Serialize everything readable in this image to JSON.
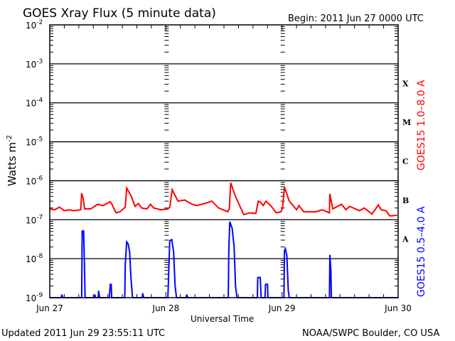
{
  "chart_data": {
    "type": "line",
    "title": "GOES Xray Flux (5 minute data)",
    "begin_label": "Begin:  2011 Jun 27 0000 UTC",
    "xlabel": "Universal Time",
    "ylabel": "Watts m",
    "ylabel_sup": "-2",
    "yscale": "log",
    "ylim": [
      1e-09,
      0.01
    ],
    "xlim_hours": [
      0,
      72
    ],
    "x_tick_labels": [
      {
        "hour": 0,
        "label": "Jun 27"
      },
      {
        "hour": 24,
        "label": "Jun 28"
      },
      {
        "hour": 48,
        "label": "Jun 29"
      },
      {
        "hour": 72,
        "label": "Jun 30"
      }
    ],
    "y_tick_labels": [
      {
        "exp": -2,
        "base": "10",
        "sup": "-2"
      },
      {
        "exp": -3,
        "base": "10",
        "sup": "-3"
      },
      {
        "exp": -4,
        "base": "10",
        "sup": "-4"
      },
      {
        "exp": -5,
        "base": "10",
        "sup": "-5"
      },
      {
        "exp": -6,
        "base": "10",
        "sup": "-6"
      },
      {
        "exp": -7,
        "base": "10",
        "sup": "-7"
      },
      {
        "exp": -8,
        "base": "10",
        "sup": "-8"
      },
      {
        "exp": -9,
        "base": "10",
        "sup": "-9"
      }
    ],
    "flare_classes": [
      {
        "label": "X",
        "exp": -4
      },
      {
        "label": "M",
        "exp": -5
      },
      {
        "label": "C",
        "exp": -6
      },
      {
        "label": "B",
        "exp": -7
      },
      {
        "label": "A",
        "exp": -8
      }
    ],
    "series": [
      {
        "name": "GOES15 1.0–8.0 A",
        "color": "#ff0000",
        "points_hour_flux": [
          [
            0,
            1.9e-07
          ],
          [
            1,
            1.8e-07
          ],
          [
            2,
            2.1e-07
          ],
          [
            3,
            1.7e-07
          ],
          [
            4,
            1.8e-07
          ],
          [
            5,
            1.7e-07
          ],
          [
            6.4,
            1.8e-07
          ],
          [
            6.6,
            4.8e-07
          ],
          [
            6.9,
            3.5e-07
          ],
          [
            7.2,
            1.9e-07
          ],
          [
            8.5,
            1.9e-07
          ],
          [
            9.9,
            2.5e-07
          ],
          [
            11,
            2.3e-07
          ],
          [
            12.5,
            2.9e-07
          ],
          [
            12.9,
            2.4e-07
          ],
          [
            13.7,
            1.5e-07
          ],
          [
            14.5,
            1.6e-07
          ],
          [
            15.4,
            2e-07
          ],
          [
            15.6,
            2.1e-07
          ],
          [
            15.9,
            6.5e-07
          ],
          [
            16.9,
            3.9e-07
          ],
          [
            17.6,
            2.2e-07
          ],
          [
            18.3,
            2.6e-07
          ],
          [
            19,
            2e-07
          ],
          [
            20.1,
            1.9e-07
          ],
          [
            20.8,
            2.5e-07
          ],
          [
            21.5,
            2e-07
          ],
          [
            23,
            1.8e-07
          ],
          [
            24.4,
            1.9e-07
          ],
          [
            24.8,
            2.1e-07
          ],
          [
            25.3,
            5.9e-07
          ],
          [
            26.5,
            3e-07
          ],
          [
            27.9,
            3.2e-07
          ],
          [
            29.4,
            2.5e-07
          ],
          [
            30.4,
            2.3e-07
          ],
          [
            32,
            2.6e-07
          ],
          [
            33.5,
            3e-07
          ],
          [
            34.9,
            2e-07
          ],
          [
            36.8,
            1.6e-07
          ],
          [
            37.1,
            1.9e-07
          ],
          [
            37.4,
            8.9e-07
          ],
          [
            38.2,
            4.5e-07
          ],
          [
            39.3,
            2.2e-07
          ],
          [
            40.1,
            1.35e-07
          ],
          [
            41.3,
            1.5e-07
          ],
          [
            42.6,
            1.45e-07
          ],
          [
            43.1,
            3e-07
          ],
          [
            43.6,
            2.8e-07
          ],
          [
            44.1,
            2.3e-07
          ],
          [
            44.7,
            3e-07
          ],
          [
            45.8,
            2.2e-07
          ],
          [
            46.8,
            1.5e-07
          ],
          [
            47.8,
            1.6e-07
          ],
          [
            48.1,
            2e-07
          ],
          [
            48.5,
            6.9e-07
          ],
          [
            49.5,
            3e-07
          ],
          [
            51,
            1.8e-07
          ],
          [
            51.5,
            2.3e-07
          ],
          [
            52.5,
            1.6e-07
          ],
          [
            55,
            1.6e-07
          ],
          [
            56.3,
            1.8e-07
          ],
          [
            57.8,
            1.5e-07
          ],
          [
            57.9,
            4.6e-07
          ],
          [
            58.5,
            1.9e-07
          ],
          [
            60.3,
            2.5e-07
          ],
          [
            61.2,
            1.8e-07
          ],
          [
            62,
            2.2e-07
          ],
          [
            64,
            1.7e-07
          ],
          [
            65,
            2e-07
          ],
          [
            66.6,
            1.4e-07
          ],
          [
            67.9,
            2.4e-07
          ],
          [
            68.5,
            1.8e-07
          ],
          [
            69.5,
            1.7e-07
          ],
          [
            70.3,
            1.25e-07
          ],
          [
            71.8,
            1.3e-07
          ]
        ]
      },
      {
        "name": "GOES15 0.5–4.0 A",
        "color": "#0000ff",
        "points_hour_flux": [
          [
            0,
            1e-09
          ],
          [
            2.4,
            1e-09
          ],
          [
            2.5,
            1.2e-09
          ],
          [
            2.7,
            1e-09
          ],
          [
            6.6,
            1e-09
          ],
          [
            6.7,
            5.1e-08
          ],
          [
            7.0,
            5.1e-08
          ],
          [
            7.1,
            1.7e-08
          ],
          [
            7.3,
            1e-09
          ],
          [
            9.2,
            1e-09
          ],
          [
            9.3,
            1.2e-09
          ],
          [
            9.5,
            1e-09
          ],
          [
            10,
            1e-09
          ],
          [
            10.1,
            1.5e-09
          ],
          [
            10.3,
            1e-09
          ],
          [
            12.3,
            1e-09
          ],
          [
            12.5,
            2.2e-09
          ],
          [
            12.7,
            2.2e-09
          ],
          [
            12.8,
            1e-09
          ],
          [
            15.5,
            1e-09
          ],
          [
            15.6,
            7e-09
          ],
          [
            15.9,
            2.7e-08
          ],
          [
            16.2,
            2.4e-08
          ],
          [
            16.5,
            1.5e-08
          ],
          [
            16.8,
            3e-09
          ],
          [
            17.1,
            1e-09
          ],
          [
            19.1,
            1e-09
          ],
          [
            19.2,
            1.3e-09
          ],
          [
            19.4,
            1e-09
          ],
          [
            24.4,
            1e-09
          ],
          [
            24.5,
            2e-09
          ],
          [
            24.8,
            2.9e-08
          ],
          [
            25.2,
            3.1e-08
          ],
          [
            25.6,
            1.5e-08
          ],
          [
            25.9,
            2e-09
          ],
          [
            26.2,
            1e-09
          ],
          [
            28.2,
            1e-09
          ],
          [
            28.3,
            1.2e-09
          ],
          [
            28.5,
            1e-09
          ],
          [
            36.9,
            1e-09
          ],
          [
            37.0,
            1.5e-08
          ],
          [
            37.2,
            8.9e-08
          ],
          [
            37.7,
            6e-08
          ],
          [
            38.1,
            2e-08
          ],
          [
            38.4,
            2e-09
          ],
          [
            38.7,
            1e-09
          ],
          [
            42.9,
            1e-09
          ],
          [
            43.0,
            3.3e-09
          ],
          [
            43.5,
            3.3e-09
          ],
          [
            43.7,
            1e-09
          ],
          [
            44.5,
            1e-09
          ],
          [
            44.6,
            2.2e-09
          ],
          [
            45,
            2.2e-09
          ],
          [
            45.1,
            1e-09
          ],
          [
            48.4,
            1e-09
          ],
          [
            48.5,
            1.6e-08
          ],
          [
            48.7,
            1.8e-08
          ],
          [
            49,
            1.2e-08
          ],
          [
            49.3,
            1.5e-09
          ],
          [
            49.5,
            1e-09
          ],
          [
            57.8,
            1e-09
          ],
          [
            57.9,
            1.25e-08
          ],
          [
            58.1,
            5e-09
          ],
          [
            58.2,
            1e-09
          ],
          [
            72,
            1e-09
          ]
        ]
      }
    ]
  },
  "footer": {
    "updated": "Updated 2011 Jun 29 23:55:11 UTC",
    "source": "NOAA/SWPC Boulder, CO USA"
  }
}
